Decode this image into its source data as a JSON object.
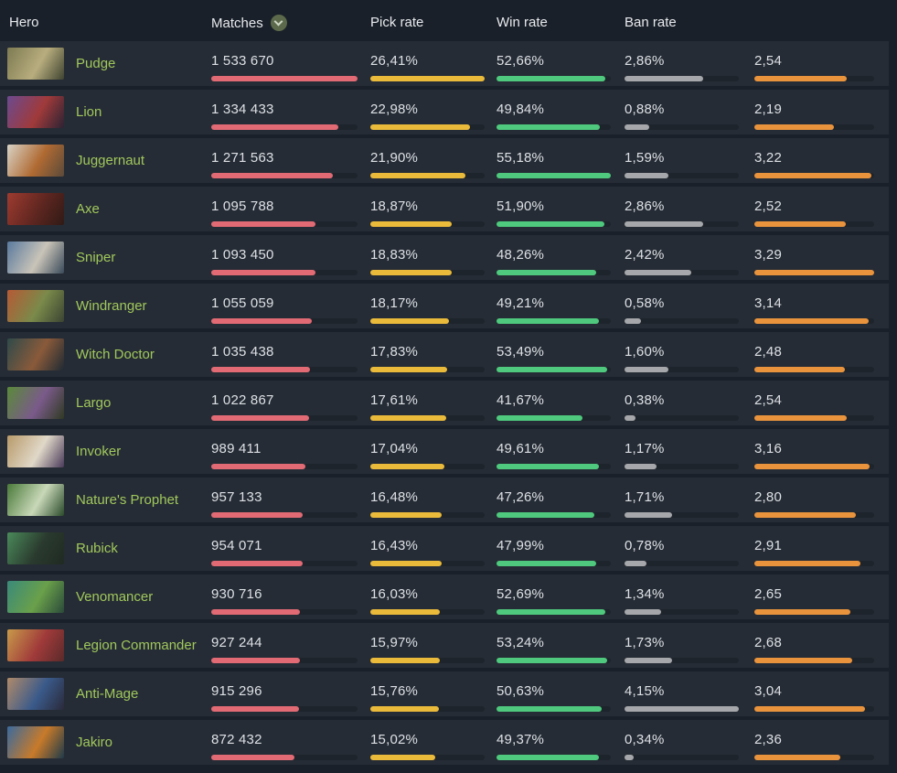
{
  "header": {
    "hero": "Hero",
    "matches": "Matches",
    "pick": "Pick rate",
    "win": "Win rate",
    "ban": "Ban rate",
    "kda": "",
    "sort_icon": "chevron-down-icon",
    "sort_column": "matches",
    "sort_direction": "descending"
  },
  "colors": {
    "page_bg": "#1a2029",
    "row_bg": "#262c35",
    "bar_track": "#1e242c",
    "header_text": "#e7eaee",
    "value_text": "#dde1e6",
    "hero_link": "#a0c85c",
    "sort_badge_bg": "#5c6a4b",
    "sort_chevron": "#cdd5c3"
  },
  "columns": {
    "matches": {
      "max": 1533670,
      "color": "#e16a74"
    },
    "pick": {
      "max": 26.41,
      "color": "#eaba3b"
    },
    "win": {
      "max": 55.18,
      "color": "#4ec97d"
    },
    "ban": {
      "max": 4.15,
      "color": "#a5a7aa"
    },
    "kda": {
      "max": 3.29,
      "color": "#e9943d"
    }
  },
  "rows": [
    {
      "hero": "Pudge",
      "portrait": [
        "#7d7a52",
        "#b8ad7e",
        "#3f4430"
      ],
      "matches": {
        "display": "1 533 670",
        "value": 1533670
      },
      "pick": {
        "display": "26,41%",
        "value": 26.41
      },
      "win": {
        "display": "52,66%",
        "value": 52.66
      },
      "ban": {
        "display": "2,86%",
        "value": 2.86
      },
      "kda": {
        "display": "2,54",
        "value": 2.54
      }
    },
    {
      "hero": "Lion",
      "portrait": [
        "#6b4a8f",
        "#a03a3a",
        "#2b2333"
      ],
      "matches": {
        "display": "1 334 433",
        "value": 1334433
      },
      "pick": {
        "display": "22,98%",
        "value": 22.98
      },
      "win": {
        "display": "49,84%",
        "value": 49.84
      },
      "ban": {
        "display": "0,88%",
        "value": 0.88
      },
      "kda": {
        "display": "2,19",
        "value": 2.19
      }
    },
    {
      "hero": "Juggernaut",
      "portrait": [
        "#d8d3c6",
        "#b06a32",
        "#5a4a3a"
      ],
      "matches": {
        "display": "1 271 563",
        "value": 1271563
      },
      "pick": {
        "display": "21,90%",
        "value": 21.9
      },
      "win": {
        "display": "55,18%",
        "value": 55.18
      },
      "ban": {
        "display": "1,59%",
        "value": 1.59
      },
      "kda": {
        "display": "3,22",
        "value": 3.22
      }
    },
    {
      "hero": "Axe",
      "portrait": [
        "#9e3b30",
        "#5e2620",
        "#2f1a16"
      ],
      "matches": {
        "display": "1 095 788",
        "value": 1095788
      },
      "pick": {
        "display": "18,87%",
        "value": 18.87
      },
      "win": {
        "display": "51,90%",
        "value": 51.9
      },
      "ban": {
        "display": "2,86%",
        "value": 2.86
      },
      "kda": {
        "display": "2,52",
        "value": 2.52
      }
    },
    {
      "hero": "Sniper",
      "portrait": [
        "#5a7a9e",
        "#c9c4b8",
        "#3a4a5a"
      ],
      "matches": {
        "display": "1 093 450",
        "value": 1093450
      },
      "pick": {
        "display": "18,83%",
        "value": 18.83
      },
      "win": {
        "display": "48,26%",
        "value": 48.26
      },
      "ban": {
        "display": "2,42%",
        "value": 2.42
      },
      "kda": {
        "display": "3,29",
        "value": 3.29
      }
    },
    {
      "hero": "Windranger",
      "portrait": [
        "#b55a35",
        "#7a8a4a",
        "#3a4432"
      ],
      "matches": {
        "display": "1 055 059",
        "value": 1055059
      },
      "pick": {
        "display": "18,17%",
        "value": 18.17
      },
      "win": {
        "display": "49,21%",
        "value": 49.21
      },
      "ban": {
        "display": "0,58%",
        "value": 0.58
      },
      "kda": {
        "display": "3,14",
        "value": 3.14
      }
    },
    {
      "hero": "Witch Doctor",
      "portrait": [
        "#2f4a4a",
        "#8a5a3a",
        "#1f2a33"
      ],
      "matches": {
        "display": "1 035 438",
        "value": 1035438
      },
      "pick": {
        "display": "17,83%",
        "value": 17.83
      },
      "win": {
        "display": "53,49%",
        "value": 53.49
      },
      "ban": {
        "display": "1,60%",
        "value": 1.6
      },
      "kda": {
        "display": "2,48",
        "value": 2.48
      }
    },
    {
      "hero": "Largo",
      "portrait": [
        "#5a8a3a",
        "#7a5a8a",
        "#2f3a22"
      ],
      "matches": {
        "display": "1 022 867",
        "value": 1022867
      },
      "pick": {
        "display": "17,61%",
        "value": 17.61
      },
      "win": {
        "display": "41,67%",
        "value": 41.67
      },
      "ban": {
        "display": "0,38%",
        "value": 0.38
      },
      "kda": {
        "display": "2,54",
        "value": 2.54
      }
    },
    {
      "hero": "Invoker",
      "portrait": [
        "#b89a6a",
        "#e0d8c8",
        "#4a3a5a"
      ],
      "matches": {
        "display": "989 411",
        "value": 989411
      },
      "pick": {
        "display": "17,04%",
        "value": 17.04
      },
      "win": {
        "display": "49,61%",
        "value": 49.61
      },
      "ban": {
        "display": "1,17%",
        "value": 1.17
      },
      "kda": {
        "display": "3,16",
        "value": 3.16
      }
    },
    {
      "hero": "Nature's Prophet",
      "portrait": [
        "#4a7a3a",
        "#c8d8b8",
        "#2a4a2a"
      ],
      "matches": {
        "display": "957 133",
        "value": 957133
      },
      "pick": {
        "display": "16,48%",
        "value": 16.48
      },
      "win": {
        "display": "47,26%",
        "value": 47.26
      },
      "ban": {
        "display": "1,71%",
        "value": 1.71
      },
      "kda": {
        "display": "2,80",
        "value": 2.8
      }
    },
    {
      "hero": "Rubick",
      "portrait": [
        "#4a8a5a",
        "#2a3a2e",
        "#1f2a22"
      ],
      "matches": {
        "display": "954 071",
        "value": 954071
      },
      "pick": {
        "display": "16,43%",
        "value": 16.43
      },
      "win": {
        "display": "47,99%",
        "value": 47.99
      },
      "ban": {
        "display": "0,78%",
        "value": 0.78
      },
      "kda": {
        "display": "2,91",
        "value": 2.91
      }
    },
    {
      "hero": "Venomancer",
      "portrait": [
        "#3a8a7a",
        "#6aa04a",
        "#2a4a3a"
      ],
      "matches": {
        "display": "930 716",
        "value": 930716
      },
      "pick": {
        "display": "16,03%",
        "value": 16.03
      },
      "win": {
        "display": "52,69%",
        "value": 52.69
      },
      "ban": {
        "display": "1,34%",
        "value": 1.34
      },
      "kda": {
        "display": "2,65",
        "value": 2.65
      }
    },
    {
      "hero": "Legion Commander",
      "portrait": [
        "#c89a4a",
        "#a03a3a",
        "#5a2a2a"
      ],
      "matches": {
        "display": "927 244",
        "value": 927244
      },
      "pick": {
        "display": "15,97%",
        "value": 15.97
      },
      "win": {
        "display": "53,24%",
        "value": 53.24
      },
      "ban": {
        "display": "1,73%",
        "value": 1.73
      },
      "kda": {
        "display": "2,68",
        "value": 2.68
      }
    },
    {
      "hero": "Anti-Mage",
      "portrait": [
        "#b08a6a",
        "#3a5a8a",
        "#2a2a3a"
      ],
      "matches": {
        "display": "915 296",
        "value": 915296
      },
      "pick": {
        "display": "15,76%",
        "value": 15.76
      },
      "win": {
        "display": "50,63%",
        "value": 50.63
      },
      "ban": {
        "display": "4,15%",
        "value": 4.15
      },
      "kda": {
        "display": "3,04",
        "value": 3.04
      }
    },
    {
      "hero": "Jakiro",
      "portrait": [
        "#3a6a9e",
        "#c87a2a",
        "#1f3a4a"
      ],
      "matches": {
        "display": "872 432",
        "value": 872432
      },
      "pick": {
        "display": "15,02%",
        "value": 15.02
      },
      "win": {
        "display": "49,37%",
        "value": 49.37
      },
      "ban": {
        "display": "0,34%",
        "value": 0.34
      },
      "kda": {
        "display": "2,36",
        "value": 2.36
      }
    }
  ]
}
